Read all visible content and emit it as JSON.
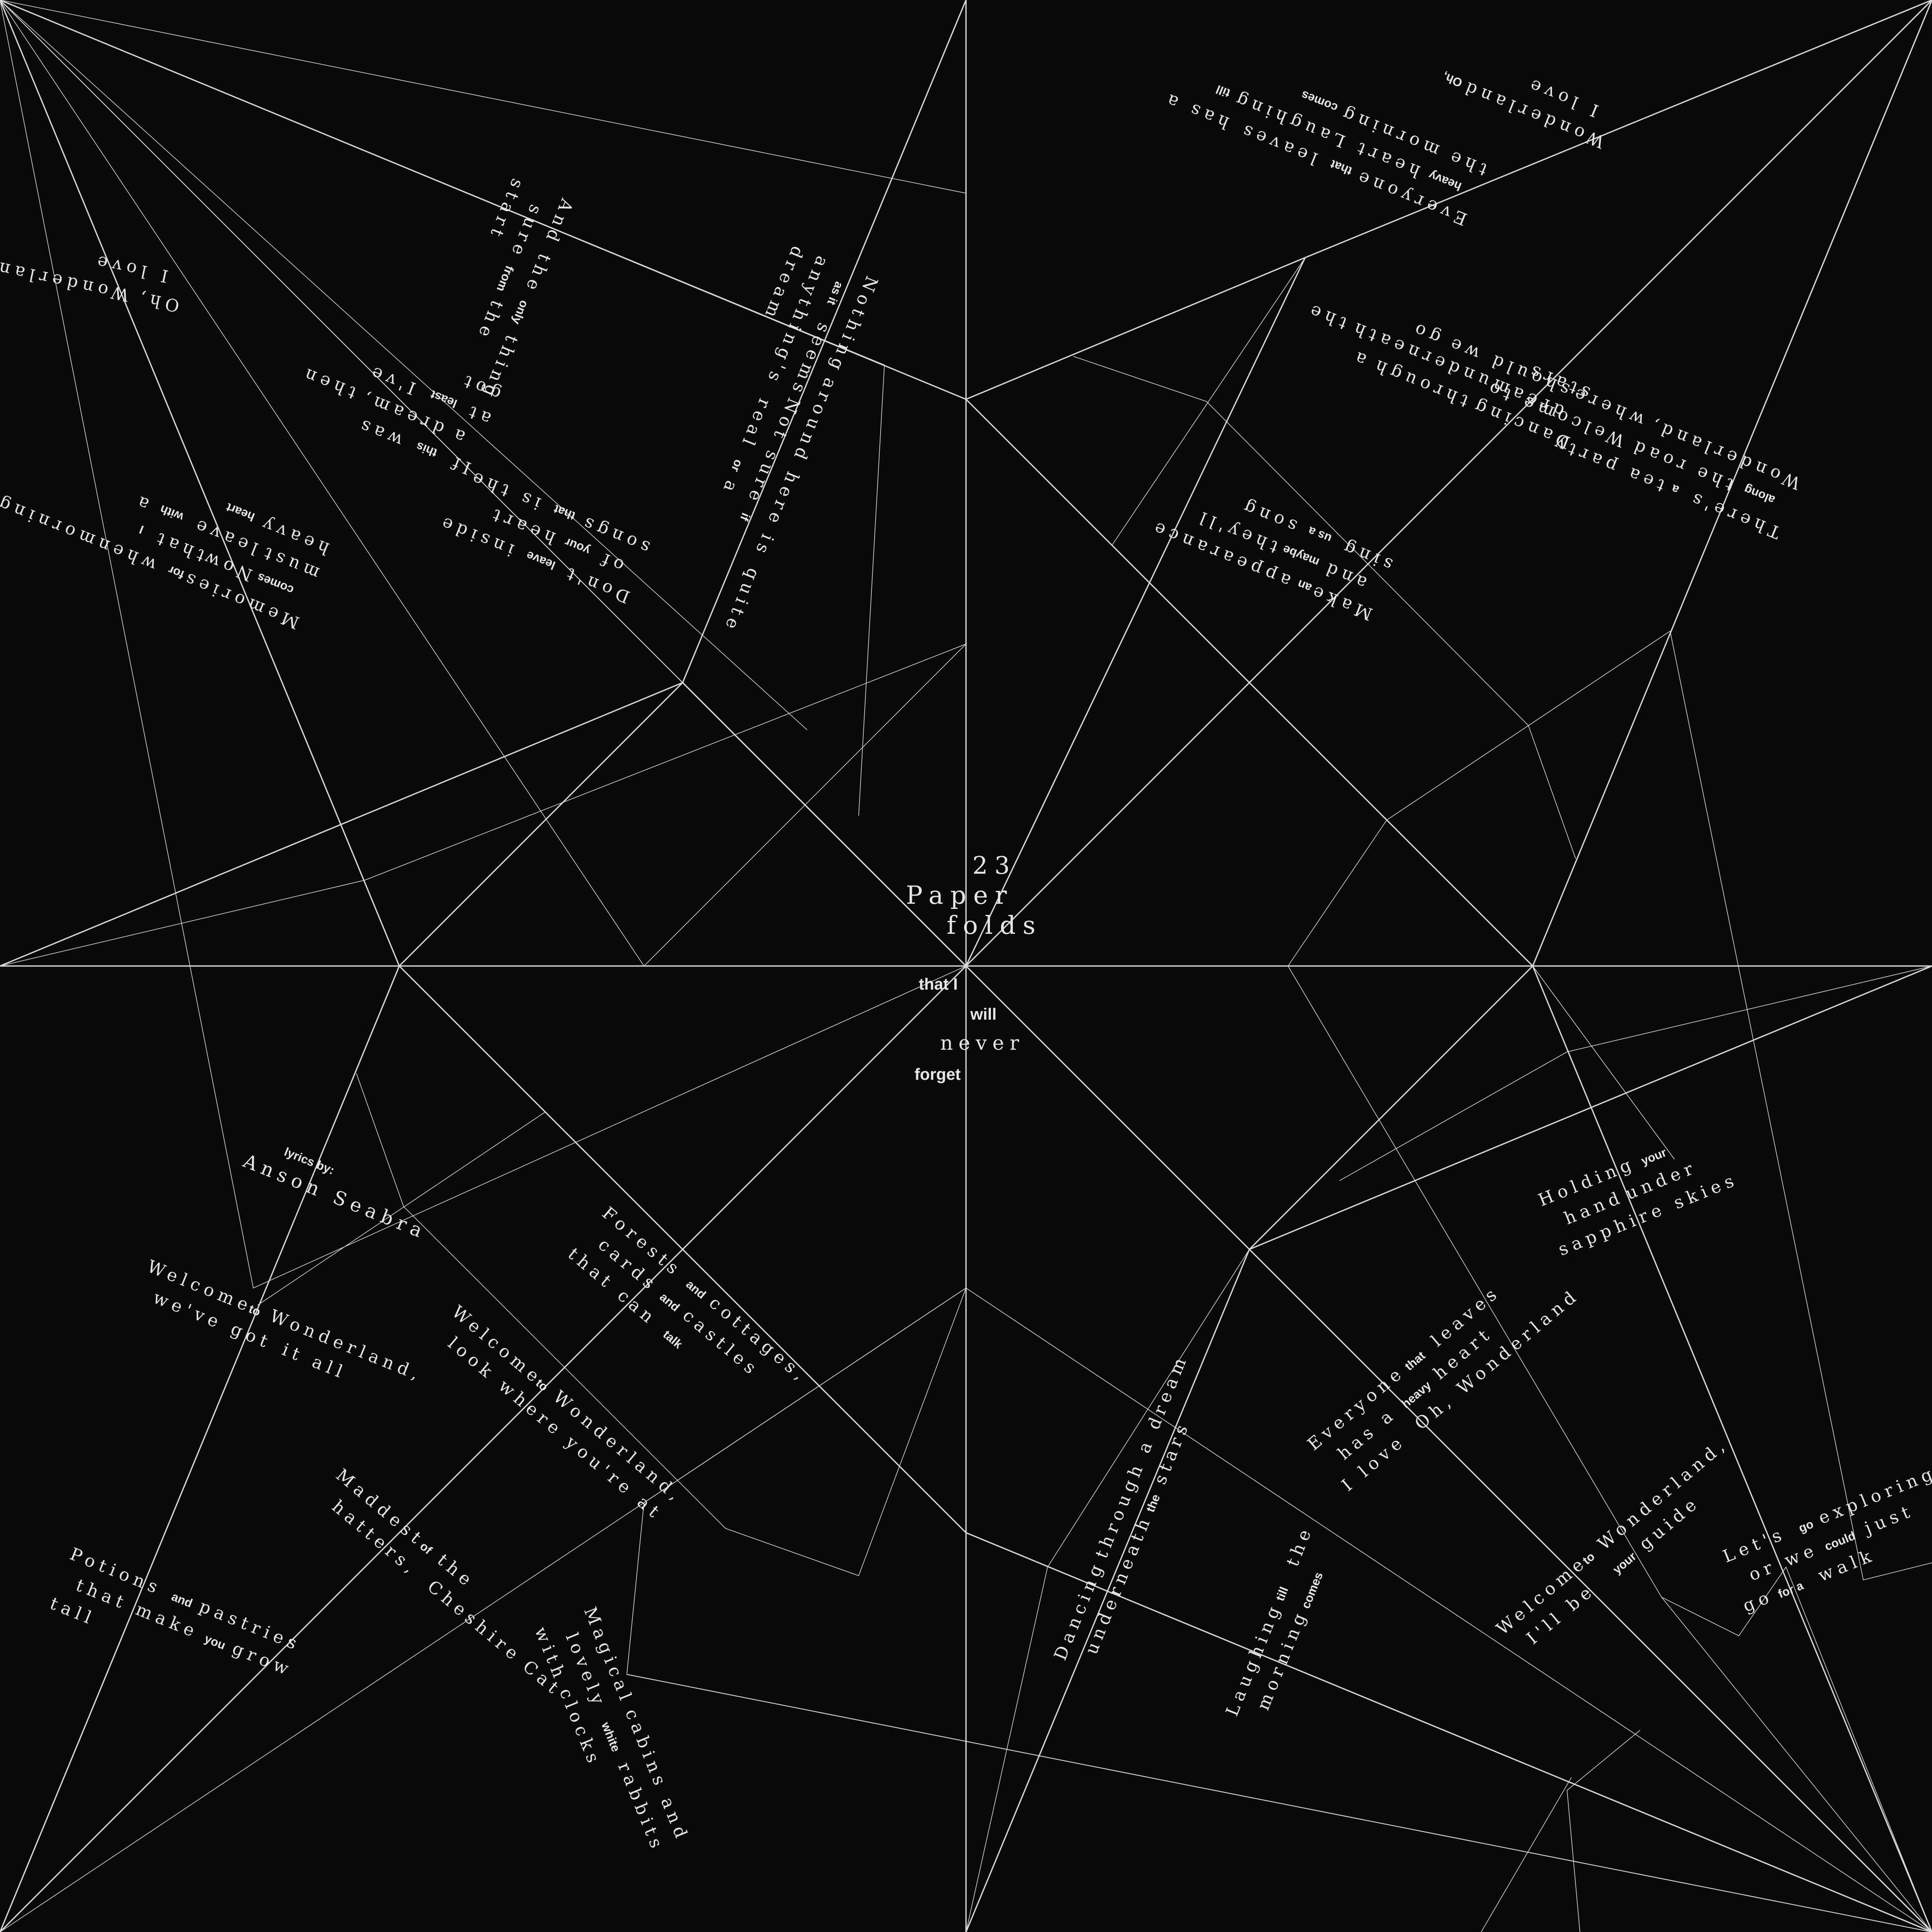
{
  "title": {
    "number": "23",
    "line1": "Paper",
    "line2": "folds",
    "line3": "that I",
    "line4": "will",
    "line5": "never",
    "line6": "forget"
  },
  "credits": {
    "label": "lyrics by:",
    "author": "Anson Seabra"
  },
  "colors": {
    "background": "#0a0a0a",
    "lines": "#d9d9d9",
    "text": "#e6e6e6",
    "accent": "#bcd6ee"
  },
  "lyrics": [
    {
      "id": "nothing",
      "words": [
        "Nothing",
        "around here",
        "is",
        "quite",
        "as it",
        "seems",
        "Not sure",
        "if",
        "anything's",
        "real",
        "or",
        "a",
        "dream"
      ]
    },
    {
      "id": "only-thing",
      "words": [
        "And the",
        "only",
        "thing",
        "sure",
        "from",
        "the",
        "start"
      ]
    },
    {
      "id": "oh-wonderland-tl",
      "words": [
        "Oh,",
        "Wonderland",
        "I love"
      ]
    },
    {
      "id": "memories",
      "words": [
        "Memories",
        "for",
        "when",
        "morning",
        "comes",
        "Now",
        "that",
        "I",
        "must",
        "leave",
        "with",
        "a",
        "heavy",
        "heart"
      ]
    },
    {
      "id": "if-dream",
      "words": [
        "If",
        "this",
        "was",
        "a",
        "dream,",
        "then",
        "at",
        "least",
        "I've",
        "got"
      ]
    },
    {
      "id": "dont-leave",
      "words": [
        "Don't",
        "leave",
        "inside",
        "of",
        "your",
        "heart",
        "songs",
        "that",
        "is the"
      ]
    },
    {
      "id": "wonderland-tr",
      "words": [
        "Wonderland",
        "Oh,",
        "I love"
      ]
    },
    {
      "id": "heavy-heart",
      "words": [
        "Everyone",
        "that",
        "leaves",
        "has a",
        "heavy",
        "heart",
        "Laughing",
        "till",
        "the",
        "morning",
        "comes"
      ]
    },
    {
      "id": "dancing-tr",
      "words": [
        "Dancing",
        "through",
        "a",
        "dream",
        "underneath",
        "the",
        "stars"
      ]
    },
    {
      "id": "tea-party",
      "words": [
        "There's",
        "a",
        "tea",
        "party",
        "along",
        "the",
        "road",
        "Welcome to",
        "Wonderland,",
        "where",
        "should we",
        "go"
      ]
    },
    {
      "id": "make-appearance",
      "words": [
        "Make",
        "an",
        "appearance",
        "and",
        "maybe",
        "they'll",
        "sing",
        "us a",
        "song"
      ]
    },
    {
      "id": "welcome-got",
      "words": [
        "Welcome",
        "to",
        "Wonderland,",
        "we've got",
        "it all"
      ]
    },
    {
      "id": "forests",
      "words": [
        "Forests",
        "and",
        "cottages,",
        "cards",
        "and",
        "castles",
        "that can",
        "talk"
      ]
    },
    {
      "id": "welcome-real",
      "words": [
        "Welcome",
        "to",
        "Wonderland,",
        "look where",
        "you're at"
      ]
    },
    {
      "id": "maddest",
      "words": [
        "Maddest",
        "of",
        "the",
        "hatters,",
        "Cheshire",
        "Cat"
      ]
    },
    {
      "id": "potions",
      "words": [
        "Potions",
        "and",
        "pastries",
        "that make",
        "you",
        "grow",
        "tall"
      ]
    },
    {
      "id": "magical",
      "words": [
        "Magical",
        "cabins",
        "and",
        "lovely",
        "white",
        "rabbits",
        "with",
        "clocks"
      ]
    },
    {
      "id": "holding",
      "words": [
        "Holding",
        "your",
        "hand",
        "under",
        "sapphire",
        "skies"
      ]
    },
    {
      "id": "everyone",
      "words": [
        "Everyone",
        "that",
        "leaves",
        "has a",
        "heavy",
        "heart",
        "I love",
        "Oh, Wonderland"
      ]
    },
    {
      "id": "dancing-br",
      "words": [
        "Dancing",
        "through a",
        "dream",
        "underneath",
        "the",
        "stars"
      ]
    },
    {
      "id": "laughing",
      "words": [
        "Laughing",
        "till",
        "the",
        "morning",
        "comes"
      ]
    },
    {
      "id": "welcome-guide",
      "words": [
        "Welcome",
        "to",
        "Wonderland,",
        "I'll be",
        "your",
        "guide"
      ]
    },
    {
      "id": "lets-go",
      "words": [
        "Let's",
        "go",
        "exploring",
        "or we",
        "could",
        "just",
        "go",
        "for a",
        "walk"
      ]
    }
  ]
}
